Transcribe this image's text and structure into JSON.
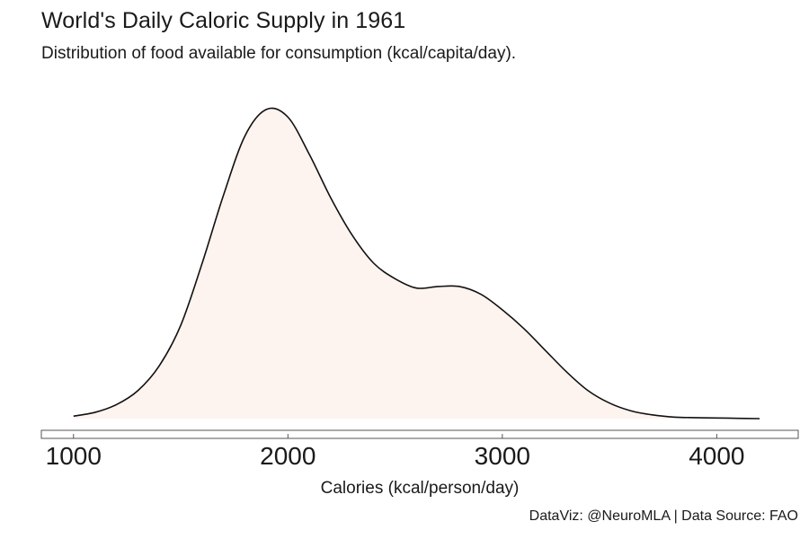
{
  "title": "World's Daily Caloric Supply in 1961",
  "subtitle": "Distribution of food available for consumption (kcal/capita/day).",
  "caption": "DataViz: @NeuroMLA | Data Source: FAO",
  "colors": {
    "fill": "#fdf3ef",
    "stroke": "#111111",
    "axis": "#555555"
  },
  "chart_data": {
    "type": "area",
    "title": "World's Daily Caloric Supply in 1961",
    "subtitle": "Distribution of food available for consumption (kcal/capita/day).",
    "xlabel": "Calories (kcal/person/day)",
    "ylabel": "",
    "xlim": [
      850,
      4380
    ],
    "ylim": [
      0,
      1.0
    ],
    "xticks": [
      1000,
      2000,
      3000,
      4000
    ],
    "xtick_labels": [
      "1000",
      "2000",
      "3000",
      "4000"
    ],
    "grid": false,
    "legend": "none",
    "series": [
      {
        "x": [
          1000,
          1100,
          1200,
          1300,
          1400,
          1500,
          1600,
          1700,
          1800,
          1900,
          2000,
          2100,
          2200,
          2300,
          2400,
          2500,
          2600,
          2700,
          2800,
          2900,
          3000,
          3100,
          3200,
          3300,
          3400,
          3500,
          3600,
          3700,
          3800,
          3900,
          4000,
          4100,
          4200
        ],
        "y": [
          0.008,
          0.02,
          0.045,
          0.09,
          0.17,
          0.3,
          0.5,
          0.72,
          0.91,
          0.995,
          0.97,
          0.85,
          0.71,
          0.59,
          0.5,
          0.45,
          0.42,
          0.425,
          0.425,
          0.4,
          0.35,
          0.29,
          0.22,
          0.15,
          0.09,
          0.05,
          0.025,
          0.012,
          0.005,
          0.003,
          0.002,
          0.001,
          0.0
        ]
      }
    ]
  }
}
